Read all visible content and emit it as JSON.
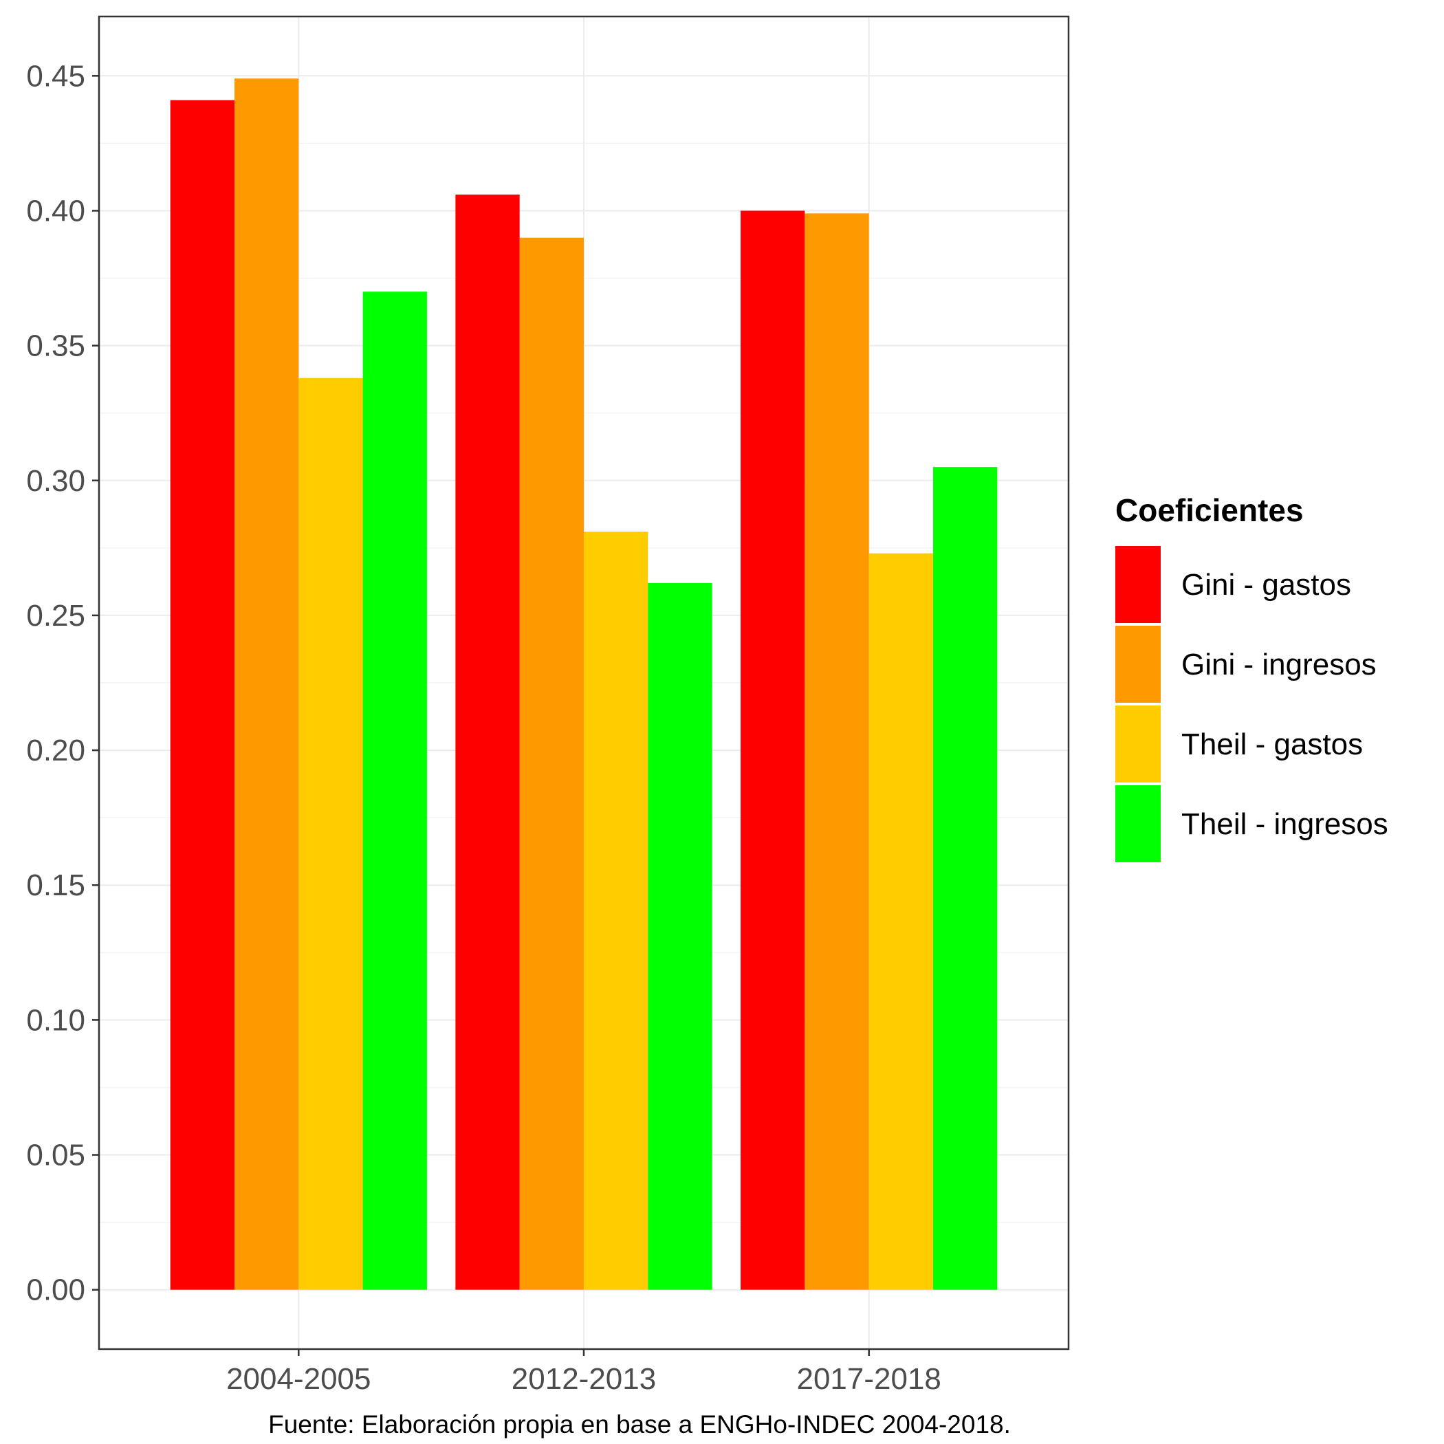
{
  "chart_data": {
    "type": "bar",
    "categories": [
      "2004-2005",
      "2012-2013",
      "2017-2018"
    ],
    "series": [
      {
        "name": "Gini - gastos",
        "color": "#ff0000",
        "values": [
          0.441,
          0.406,
          0.4
        ]
      },
      {
        "name": "Gini - ingresos",
        "color": "#ff9900",
        "values": [
          0.449,
          0.39,
          0.399
        ]
      },
      {
        "name": "Theil - gastos",
        "color": "#ffcc00",
        "values": [
          0.338,
          0.281,
          0.273
        ]
      },
      {
        "name": "Theil - ingresos",
        "color": "#00ff00",
        "values": [
          0.37,
          0.262,
          0.305
        ]
      }
    ],
    "yticks": [
      "0.00",
      "0.05",
      "0.10",
      "0.15",
      "0.20",
      "0.25",
      "0.30",
      "0.35",
      "0.40",
      "0.45"
    ],
    "ylim": [
      -0.022,
      0.472
    ],
    "grid": true,
    "legend": {
      "title": "Coeficientes",
      "position": "right"
    },
    "caption": "Fuente: Elaboración propia en base a ENGHo-INDEC 2004-2018."
  }
}
